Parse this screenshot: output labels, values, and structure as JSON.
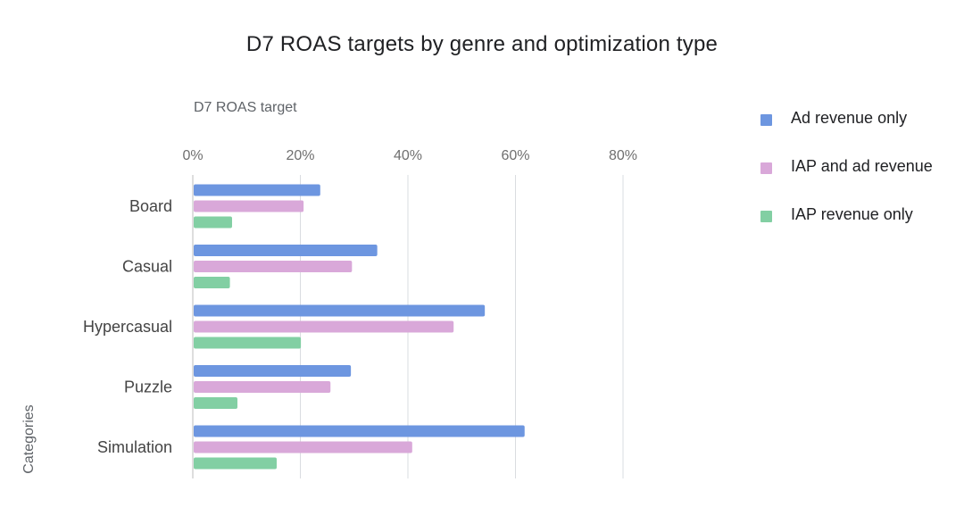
{
  "chart_data": {
    "type": "bar",
    "orientation": "horizontal",
    "title": "D7 ROAS targets by genre and optimization type",
    "xlabel": "D7 ROAS target",
    "ylabel": "Categories",
    "categories": [
      "Board",
      "Casual",
      "Hypercasual",
      "Puzzle",
      "Simulation"
    ],
    "series": [
      {
        "name": "Ad revenue only",
        "color": "#6d96e0",
        "values": [
          23.7,
          34.3,
          54.3,
          29.4,
          61.7
        ]
      },
      {
        "name": "IAP and ad revenue",
        "color": "#d9a8d9",
        "values": [
          20.6,
          29.6,
          48.5,
          25.6,
          40.8
        ]
      },
      {
        "name": "IAP revenue only",
        "color": "#82cfa3",
        "values": [
          7.3,
          6.9,
          20.1,
          8.3,
          15.6
        ]
      }
    ],
    "xlim": [
      0,
      80
    ],
    "xticks": [
      "0%",
      "20%",
      "40%",
      "60%",
      "80%"
    ],
    "grid": true,
    "legend_position": "right"
  }
}
